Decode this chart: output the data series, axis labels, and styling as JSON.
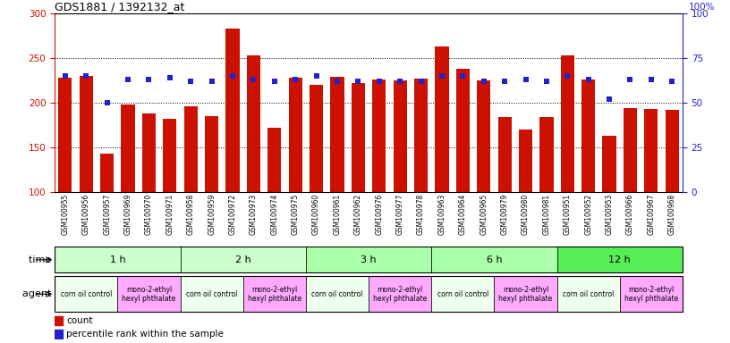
{
  "title": "GDS1881 / 1392132_at",
  "samples": [
    "GSM100955",
    "GSM100956",
    "GSM100957",
    "GSM100969",
    "GSM100970",
    "GSM100971",
    "GSM100958",
    "GSM100959",
    "GSM100972",
    "GSM100973",
    "GSM100974",
    "GSM100975",
    "GSM100960",
    "GSM100961",
    "GSM100962",
    "GSM100976",
    "GSM100977",
    "GSM100978",
    "GSM100963",
    "GSM100964",
    "GSM100965",
    "GSM100979",
    "GSM100980",
    "GSM100981",
    "GSM100951",
    "GSM100952",
    "GSM100953",
    "GSM100966",
    "GSM100967",
    "GSM100968"
  ],
  "counts": [
    228,
    230,
    143,
    198,
    188,
    182,
    196,
    185,
    283,
    253,
    172,
    228,
    220,
    229,
    222,
    226,
    225,
    227,
    263,
    238,
    225,
    184,
    170,
    184,
    253,
    226,
    163,
    194,
    193,
    192
  ],
  "percentiles": [
    65,
    65,
    50,
    63,
    63,
    64,
    62,
    62,
    65,
    63,
    62,
    63,
    65,
    62,
    62,
    62,
    62,
    62,
    65,
    65,
    62,
    62,
    63,
    62,
    65,
    63,
    52,
    63,
    63,
    62
  ],
  "bar_color": "#CC1100",
  "dot_color": "#2222CC",
  "ymin": 100,
  "ymax": 300,
  "y2min": 0,
  "y2max": 100,
  "yticks_left": [
    100,
    150,
    200,
    250,
    300
  ],
  "yticks_right": [
    0,
    25,
    50,
    75,
    100
  ],
  "grid_values": [
    150,
    200,
    250
  ],
  "time_groups": [
    {
      "label": "1 h",
      "start": 0,
      "end": 6,
      "color": "#CCFFCC"
    },
    {
      "label": "2 h",
      "start": 6,
      "end": 12,
      "color": "#CCFFCC"
    },
    {
      "label": "3 h",
      "start": 12,
      "end": 18,
      "color": "#AAFFAA"
    },
    {
      "label": "6 h",
      "start": 18,
      "end": 24,
      "color": "#AAFFAA"
    },
    {
      "label": "12 h",
      "start": 24,
      "end": 30,
      "color": "#55EE55"
    }
  ],
  "agent_groups": [
    {
      "label": "corn oil control",
      "start": 0,
      "end": 3,
      "color": "#EEFFEE"
    },
    {
      "label": "mono-2-ethyl\nhexyl phthalate",
      "start": 3,
      "end": 6,
      "color": "#FFAAFF"
    },
    {
      "label": "corn oil control",
      "start": 6,
      "end": 9,
      "color": "#EEFFEE"
    },
    {
      "label": "mono-2-ethyl\nhexyl phthalate",
      "start": 9,
      "end": 12,
      "color": "#FFAAFF"
    },
    {
      "label": "corn oil control",
      "start": 12,
      "end": 15,
      "color": "#EEFFEE"
    },
    {
      "label": "mono-2-ethyl\nhexyl phthalate",
      "start": 15,
      "end": 18,
      "color": "#FFAAFF"
    },
    {
      "label": "corn oil control",
      "start": 18,
      "end": 21,
      "color": "#EEFFEE"
    },
    {
      "label": "mono-2-ethyl\nhexyl phthalate",
      "start": 21,
      "end": 24,
      "color": "#FFAAFF"
    },
    {
      "label": "corn oil control",
      "start": 24,
      "end": 27,
      "color": "#EEFFEE"
    },
    {
      "label": "mono-2-ethyl\nhexyl phthalate",
      "start": 27,
      "end": 30,
      "color": "#FFAAFF"
    }
  ],
  "axis_color_left": "#CC1100",
  "axis_color_right": "#2222CC",
  "bg_color": "#FFFFFF",
  "xticklabel_bg": "#DDDDDD"
}
